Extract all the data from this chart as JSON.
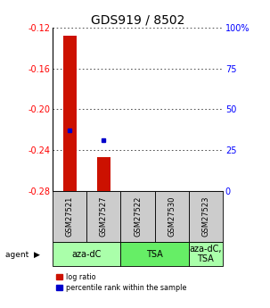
{
  "title": "GDS919 / 8502",
  "samples": [
    "GSM27521",
    "GSM27527",
    "GSM27522",
    "GSM27530",
    "GSM27523"
  ],
  "log_ratios": [
    -0.128,
    -0.247,
    null,
    null,
    null
  ],
  "percentile_ranks_pct": [
    37,
    31,
    null,
    null,
    null
  ],
  "ylim": [
    -0.28,
    -0.12
  ],
  "yticks": [
    -0.28,
    -0.24,
    -0.2,
    -0.16,
    -0.12
  ],
  "right_yticks_pct": [
    0,
    25,
    50,
    75,
    100
  ],
  "bar_color": "#CC1100",
  "dot_color": "#0000CC",
  "agent_groups": [
    {
      "label": "aza-dC",
      "cols": [
        0,
        1
      ],
      "color": "#AAFFAA"
    },
    {
      "label": "TSA",
      "cols": [
        2,
        3
      ],
      "color": "#66EE66"
    },
    {
      "label": "aza-dC,\nTSA",
      "cols": [
        4
      ],
      "color": "#AAFFAA"
    }
  ],
  "legend_red": "log ratio",
  "legend_blue": "percentile rank within the sample",
  "title_fontsize": 10,
  "tick_label_fontsize": 7,
  "sample_fontsize": 6,
  "agent_fontsize": 7,
  "bar_width": 0.4,
  "sample_box_color": "#CCCCCC",
  "grid_color": "#333333",
  "bg_color": "#FFFFFF"
}
